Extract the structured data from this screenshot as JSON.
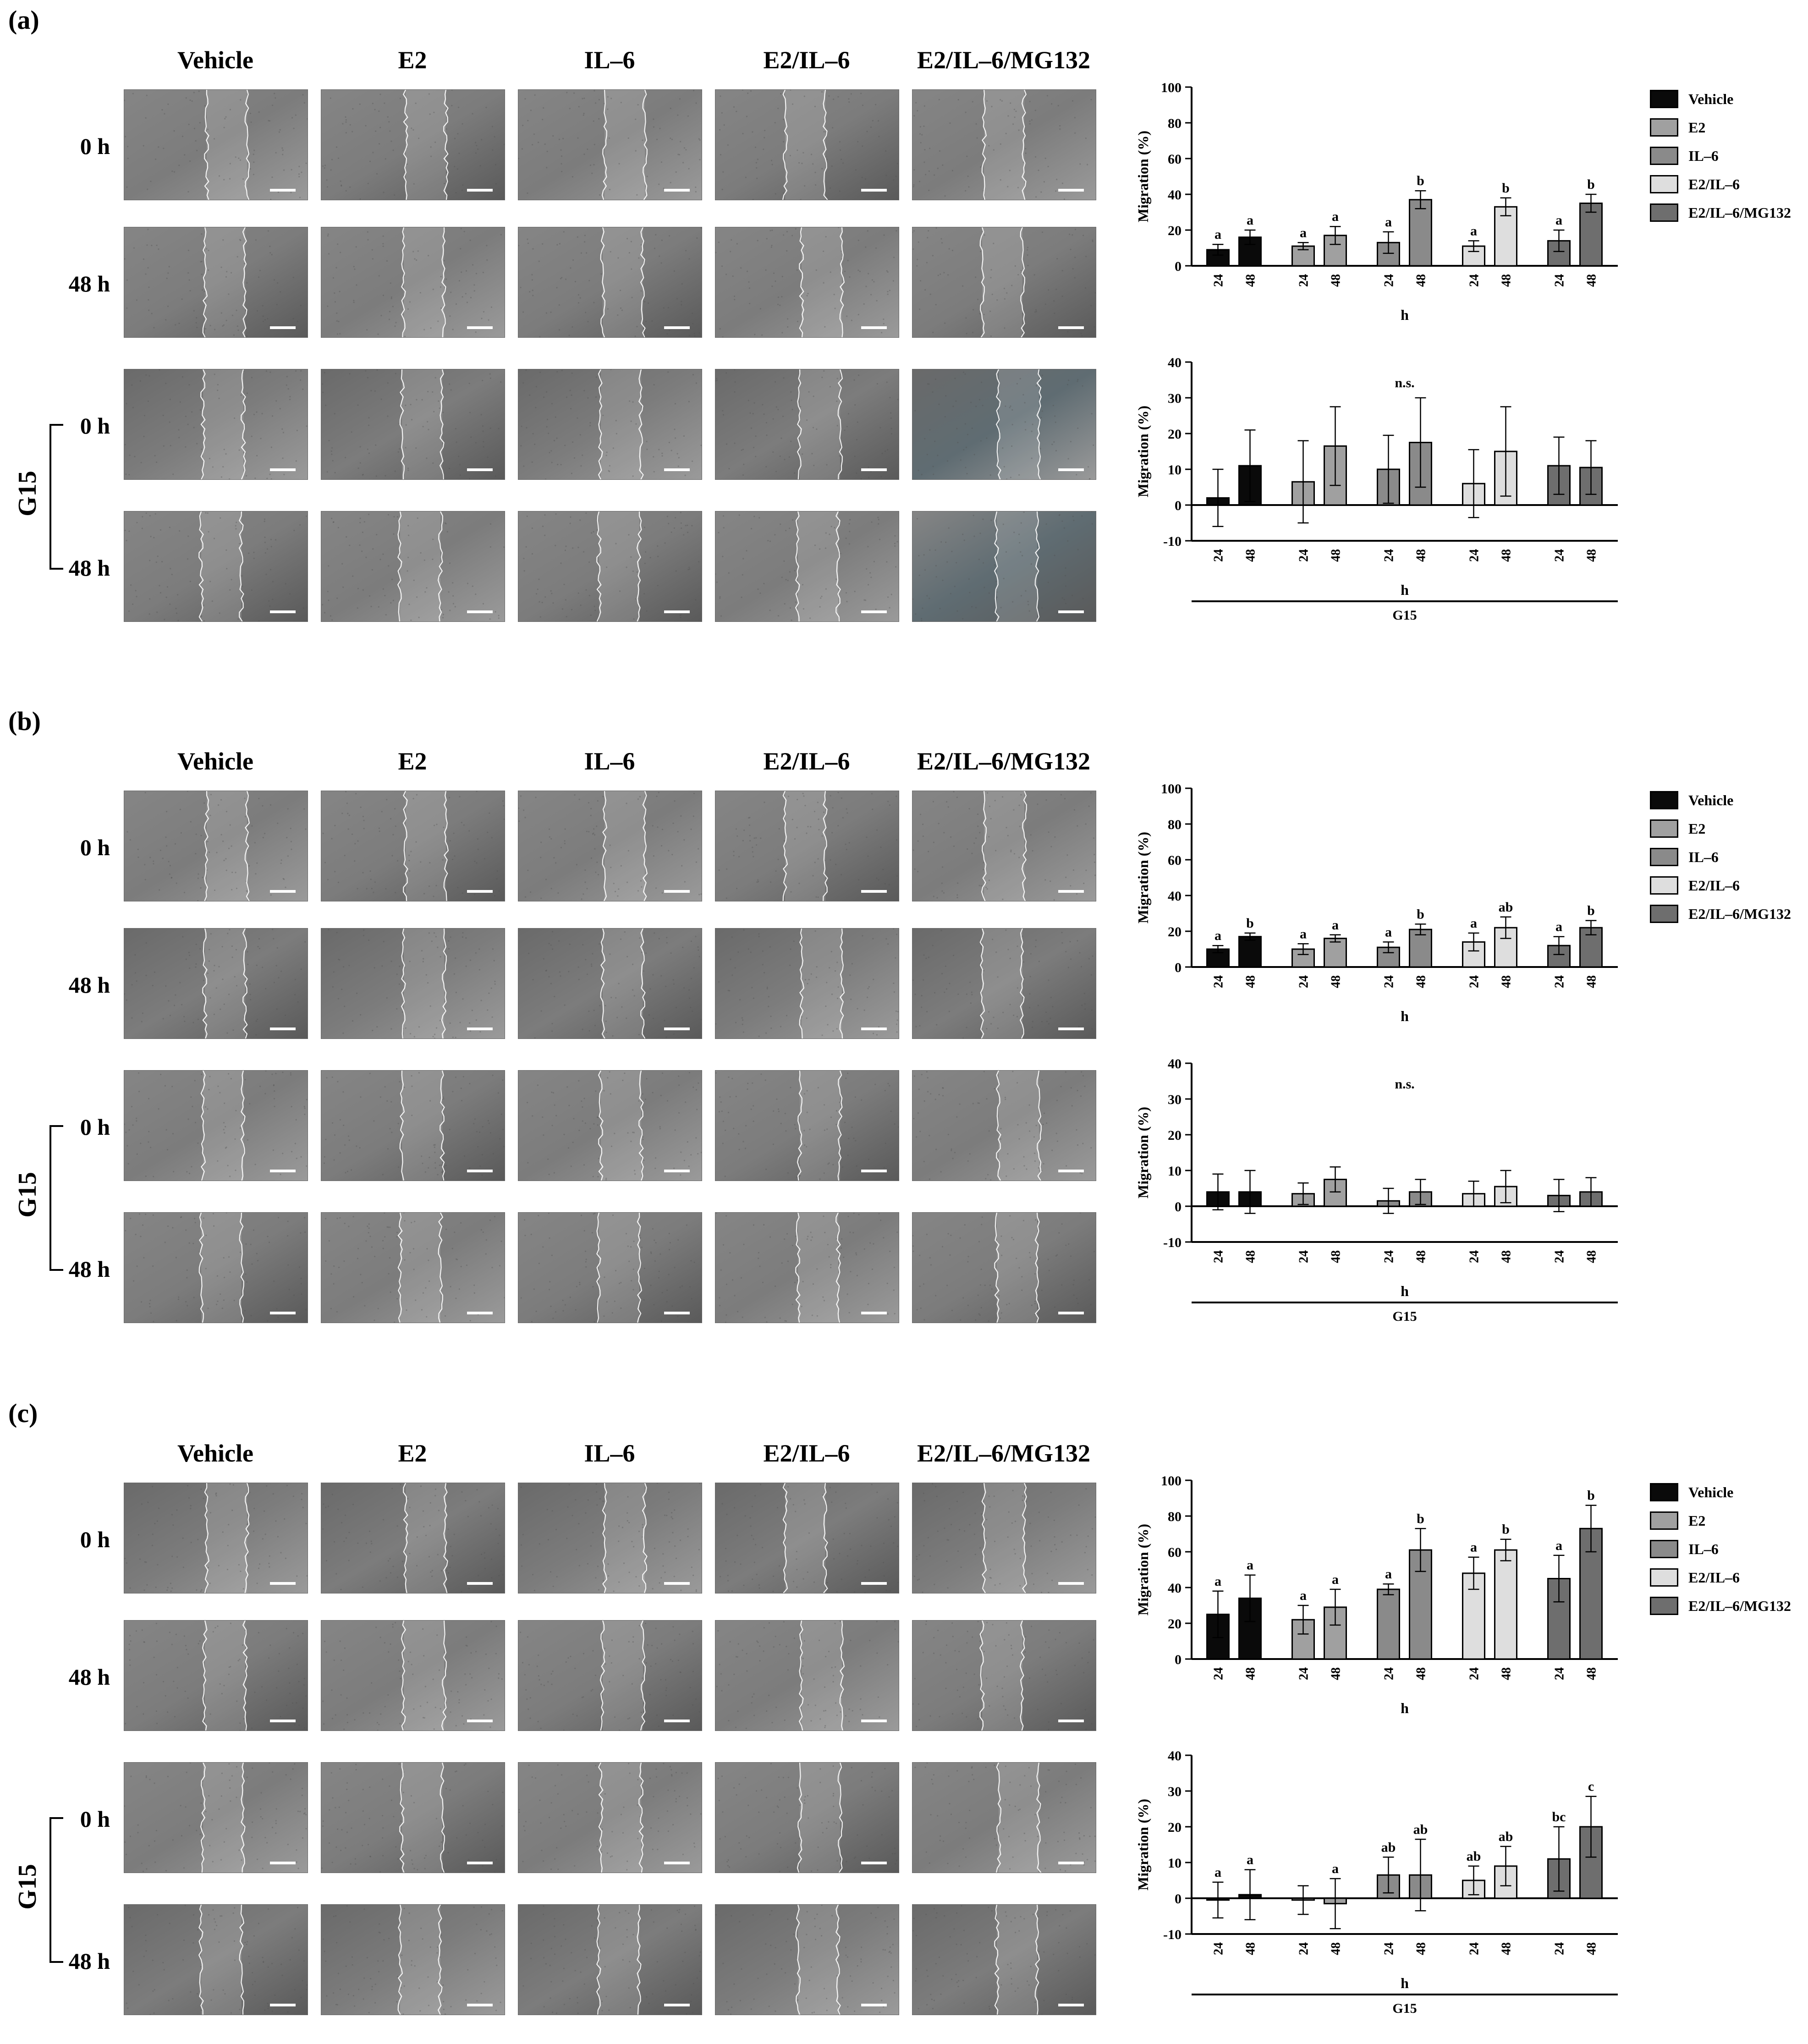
{
  "columns": [
    "Vehicle",
    "E2",
    "IL–6",
    "E2/IL–6",
    "E2/IL–6/MG132"
  ],
  "rows": [
    "0 h",
    "48 h",
    "0 h",
    "48 h"
  ],
  "treatment_label": "G15",
  "colors": {
    "Vehicle": "#0a0a0a",
    "E2": "#a0a0a0",
    "IL–6": "#8a8a8a",
    "E2/IL–6": "#dedede",
    "E2/IL–6/MG132": "#6e6e6e"
  },
  "panels": [
    {
      "label": "(a)",
      "legend": [
        "Vehicle",
        "E2",
        "IL–6",
        "E2/IL–6",
        "E2/IL–6/MG132"
      ],
      "charts": [
        {
          "type": "bar",
          "ylabel": "Migration (%)",
          "xlabel": "h",
          "group_label": "",
          "yticks": [
            0,
            20,
            40,
            60,
            80,
            100
          ],
          "ylim": [
            0,
            100
          ],
          "categories": [
            "24",
            "48"
          ],
          "note": "",
          "series": [
            {
              "name": "Vehicle",
              "values": [
                9,
                16
              ],
              "errors": [
                3,
                4
              ],
              "letters": [
                "a",
                "a"
              ]
            },
            {
              "name": "E2",
              "values": [
                11,
                17
              ],
              "errors": [
                2,
                5
              ],
              "letters": [
                "a",
                "a"
              ]
            },
            {
              "name": "IL–6",
              "values": [
                13,
                37
              ],
              "errors": [
                6,
                5
              ],
              "letters": [
                "a",
                "b"
              ]
            },
            {
              "name": "E2/IL–6",
              "values": [
                11,
                33
              ],
              "errors": [
                3,
                5
              ],
              "letters": [
                "a",
                "b"
              ]
            },
            {
              "name": "E2/IL–6/MG132",
              "values": [
                14,
                35
              ],
              "errors": [
                6,
                5
              ],
              "letters": [
                "a",
                "b"
              ]
            }
          ]
        },
        {
          "type": "bar",
          "ylabel": "Migration (%)",
          "xlabel": "h",
          "group_label": "G15",
          "yticks": [
            -10,
            0,
            10,
            20,
            30,
            40
          ],
          "ylim": [
            -10,
            40
          ],
          "categories": [
            "24",
            "48"
          ],
          "note": "n.s.",
          "series": [
            {
              "name": "Vehicle",
              "values": [
                2,
                11
              ],
              "errors": [
                8,
                10
              ],
              "letters": [
                "",
                ""
              ]
            },
            {
              "name": "E2",
              "values": [
                6.5,
                16.5
              ],
              "errors": [
                11.5,
                11
              ],
              "letters": [
                "",
                ""
              ]
            },
            {
              "name": "IL–6",
              "values": [
                10,
                17.5
              ],
              "errors": [
                9.5,
                12.5
              ],
              "letters": [
                "",
                ""
              ]
            },
            {
              "name": "E2/IL–6",
              "values": [
                6,
                15
              ],
              "errors": [
                9.5,
                12.5
              ],
              "letters": [
                "",
                ""
              ]
            },
            {
              "name": "E2/IL–6/MG132",
              "values": [
                11,
                10.5
              ],
              "errors": [
                8,
                7.5
              ],
              "letters": [
                "",
                ""
              ]
            }
          ]
        }
      ]
    },
    {
      "label": "(b)",
      "legend": [
        "Vehicle",
        "E2",
        "IL–6",
        "E2/IL–6",
        "E2/IL–6/MG132"
      ],
      "charts": [
        {
          "type": "bar",
          "ylabel": "Migration (%)",
          "xlabel": "h",
          "group_label": "",
          "yticks": [
            0,
            20,
            40,
            60,
            80,
            100
          ],
          "ylim": [
            0,
            100
          ],
          "categories": [
            "24",
            "48"
          ],
          "note": "",
          "series": [
            {
              "name": "Vehicle",
              "values": [
                10,
                17
              ],
              "errors": [
                2,
                2
              ],
              "letters": [
                "a",
                "b"
              ]
            },
            {
              "name": "E2",
              "values": [
                10,
                16
              ],
              "errors": [
                3,
                2
              ],
              "letters": [
                "a",
                "a"
              ]
            },
            {
              "name": "IL–6",
              "values": [
                11,
                21
              ],
              "errors": [
                3,
                3
              ],
              "letters": [
                "a",
                "b"
              ]
            },
            {
              "name": "E2/IL–6",
              "values": [
                14,
                22
              ],
              "errors": [
                5,
                6
              ],
              "letters": [
                "a",
                "ab"
              ]
            },
            {
              "name": "E2/IL–6/MG132",
              "values": [
                12,
                22
              ],
              "errors": [
                5,
                4
              ],
              "letters": [
                "a",
                "b"
              ]
            }
          ]
        },
        {
          "type": "bar",
          "ylabel": "Migration (%)",
          "xlabel": "h",
          "group_label": "G15",
          "yticks": [
            -10,
            0,
            10,
            20,
            30,
            40
          ],
          "ylim": [
            -10,
            40
          ],
          "categories": [
            "24",
            "48"
          ],
          "note": "n.s.",
          "series": [
            {
              "name": "Vehicle",
              "values": [
                4,
                4
              ],
              "errors": [
                5,
                6
              ],
              "letters": [
                "",
                ""
              ]
            },
            {
              "name": "E2",
              "values": [
                3.5,
                7.5
              ],
              "errors": [
                3,
                3.5
              ],
              "letters": [
                "",
                ""
              ]
            },
            {
              "name": "IL–6",
              "values": [
                1.5,
                4
              ],
              "errors": [
                3.5,
                3.5
              ],
              "letters": [
                "",
                ""
              ]
            },
            {
              "name": "E2/IL–6",
              "values": [
                3.5,
                5.5
              ],
              "errors": [
                3.5,
                4.5
              ],
              "letters": [
                "",
                ""
              ]
            },
            {
              "name": "E2/IL–6/MG132",
              "values": [
                3,
                4
              ],
              "errors": [
                4.5,
                4
              ],
              "letters": [
                "",
                ""
              ]
            }
          ]
        }
      ]
    },
    {
      "label": "(c)",
      "legend": [
        "Vehicle",
        "E2",
        "IL–6",
        "E2/IL–6",
        "E2/IL–6/MG132"
      ],
      "charts": [
        {
          "type": "bar",
          "ylabel": "Migration (%)",
          "xlabel": "h",
          "group_label": "",
          "yticks": [
            0,
            20,
            40,
            60,
            80,
            100
          ],
          "ylim": [
            0,
            100
          ],
          "categories": [
            "24",
            "48"
          ],
          "note": "",
          "series": [
            {
              "name": "Vehicle",
              "values": [
                25,
                34
              ],
              "errors": [
                13,
                13
              ],
              "letters": [
                "a",
                "a"
              ]
            },
            {
              "name": "E2",
              "values": [
                22,
                29
              ],
              "errors": [
                8,
                10
              ],
              "letters": [
                "a",
                "a"
              ]
            },
            {
              "name": "IL–6",
              "values": [
                39,
                61
              ],
              "errors": [
                3,
                12
              ],
              "letters": [
                "a",
                "b"
              ]
            },
            {
              "name": "E2/IL–6",
              "values": [
                48,
                61
              ],
              "errors": [
                9,
                6
              ],
              "letters": [
                "a",
                "b"
              ]
            },
            {
              "name": "E2/IL–6/MG132",
              "values": [
                45,
                73
              ],
              "errors": [
                13,
                13
              ],
              "letters": [
                "a",
                "b"
              ]
            }
          ]
        },
        {
          "type": "bar",
          "ylabel": "Migration (%)",
          "xlabel": "h",
          "group_label": "G15",
          "yticks": [
            -10,
            0,
            10,
            20,
            30,
            40
          ],
          "ylim": [
            -10,
            40
          ],
          "categories": [
            "24",
            "48"
          ],
          "note": "",
          "series": [
            {
              "name": "Vehicle",
              "values": [
                -0.5,
                1
              ],
              "errors": [
                5,
                7
              ],
              "letters": [
                "a",
                "a"
              ]
            },
            {
              "name": "E2",
              "values": [
                -0.5,
                -1.5
              ],
              "errors": [
                4,
                7
              ],
              "letters": [
                "",
                "a"
              ]
            },
            {
              "name": "IL–6",
              "values": [
                6.5,
                6.5
              ],
              "errors": [
                5,
                10
              ],
              "letters": [
                "ab",
                "ab"
              ]
            },
            {
              "name": "E2/IL–6",
              "values": [
                5,
                9
              ],
              "errors": [
                4,
                5.5
              ],
              "letters": [
                "ab",
                "ab"
              ]
            },
            {
              "name": "E2/IL–6/MG132",
              "values": [
                11,
                20
              ],
              "errors": [
                9,
                8.5
              ],
              "letters": [
                "bc",
                "c"
              ]
            }
          ]
        }
      ]
    }
  ],
  "chart_data": [
    {
      "type": "bar",
      "panel": "(a)",
      "ylabel": "Migration (%)",
      "xlabel": "h",
      "categories": [
        "24",
        "48"
      ],
      "ylim": [
        0,
        100
      ],
      "series": [
        {
          "name": "Vehicle",
          "values": [
            9,
            16
          ]
        },
        {
          "name": "E2",
          "values": [
            11,
            17
          ]
        },
        {
          "name": "IL–6",
          "values": [
            13,
            37
          ]
        },
        {
          "name": "E2/IL–6",
          "values": [
            11,
            33
          ]
        },
        {
          "name": "E2/IL–6/MG132",
          "values": [
            14,
            35
          ]
        }
      ]
    },
    {
      "type": "bar",
      "panel": "(a)",
      "group": "G15",
      "ylabel": "Migration (%)",
      "xlabel": "h",
      "categories": [
        "24",
        "48"
      ],
      "ylim": [
        -10,
        40
      ],
      "series": [
        {
          "name": "Vehicle",
          "values": [
            2,
            11
          ]
        },
        {
          "name": "E2",
          "values": [
            6.5,
            16.5
          ]
        },
        {
          "name": "IL–6",
          "values": [
            10,
            17.5
          ]
        },
        {
          "name": "E2/IL–6",
          "values": [
            6,
            15
          ]
        },
        {
          "name": "E2/IL–6/MG132",
          "values": [
            11,
            10.5
          ]
        }
      ]
    },
    {
      "type": "bar",
      "panel": "(b)",
      "ylabel": "Migration (%)",
      "xlabel": "h",
      "categories": [
        "24",
        "48"
      ],
      "ylim": [
        0,
        100
      ],
      "series": [
        {
          "name": "Vehicle",
          "values": [
            10,
            17
          ]
        },
        {
          "name": "E2",
          "values": [
            10,
            16
          ]
        },
        {
          "name": "IL–6",
          "values": [
            11,
            21
          ]
        },
        {
          "name": "E2/IL–6",
          "values": [
            14,
            22
          ]
        },
        {
          "name": "E2/IL–6/MG132",
          "values": [
            12,
            22
          ]
        }
      ]
    },
    {
      "type": "bar",
      "panel": "(b)",
      "group": "G15",
      "ylabel": "Migration (%)",
      "xlabel": "h",
      "categories": [
        "24",
        "48"
      ],
      "ylim": [
        -10,
        40
      ],
      "series": [
        {
          "name": "Vehicle",
          "values": [
            4,
            4
          ]
        },
        {
          "name": "E2",
          "values": [
            3.5,
            7.5
          ]
        },
        {
          "name": "IL–6",
          "values": [
            1.5,
            4
          ]
        },
        {
          "name": "E2/IL–6",
          "values": [
            3.5,
            5.5
          ]
        },
        {
          "name": "E2/IL–6/MG132",
          "values": [
            3,
            4
          ]
        }
      ]
    },
    {
      "type": "bar",
      "panel": "(c)",
      "ylabel": "Migration (%)",
      "xlabel": "h",
      "categories": [
        "24",
        "48"
      ],
      "ylim": [
        0,
        100
      ],
      "series": [
        {
          "name": "Vehicle",
          "values": [
            25,
            34
          ]
        },
        {
          "name": "E2",
          "values": [
            22,
            29
          ]
        },
        {
          "name": "IL–6",
          "values": [
            39,
            61
          ]
        },
        {
          "name": "E2/IL–6",
          "values": [
            48,
            61
          ]
        },
        {
          "name": "E2/IL–6/MG132",
          "values": [
            45,
            73
          ]
        }
      ]
    },
    {
      "type": "bar",
      "panel": "(c)",
      "group": "G15",
      "ylabel": "Migration (%)",
      "xlabel": "h",
      "categories": [
        "24",
        "48"
      ],
      "ylim": [
        -10,
        40
      ],
      "series": [
        {
          "name": "Vehicle",
          "values": [
            -0.5,
            1
          ]
        },
        {
          "name": "E2",
          "values": [
            -0.5,
            -1.5
          ]
        },
        {
          "name": "IL–6",
          "values": [
            6.5,
            6.5
          ]
        },
        {
          "name": "E2/IL–6",
          "values": [
            5,
            9
          ]
        },
        {
          "name": "E2/IL–6/MG132",
          "values": [
            11,
            20
          ]
        }
      ]
    }
  ]
}
